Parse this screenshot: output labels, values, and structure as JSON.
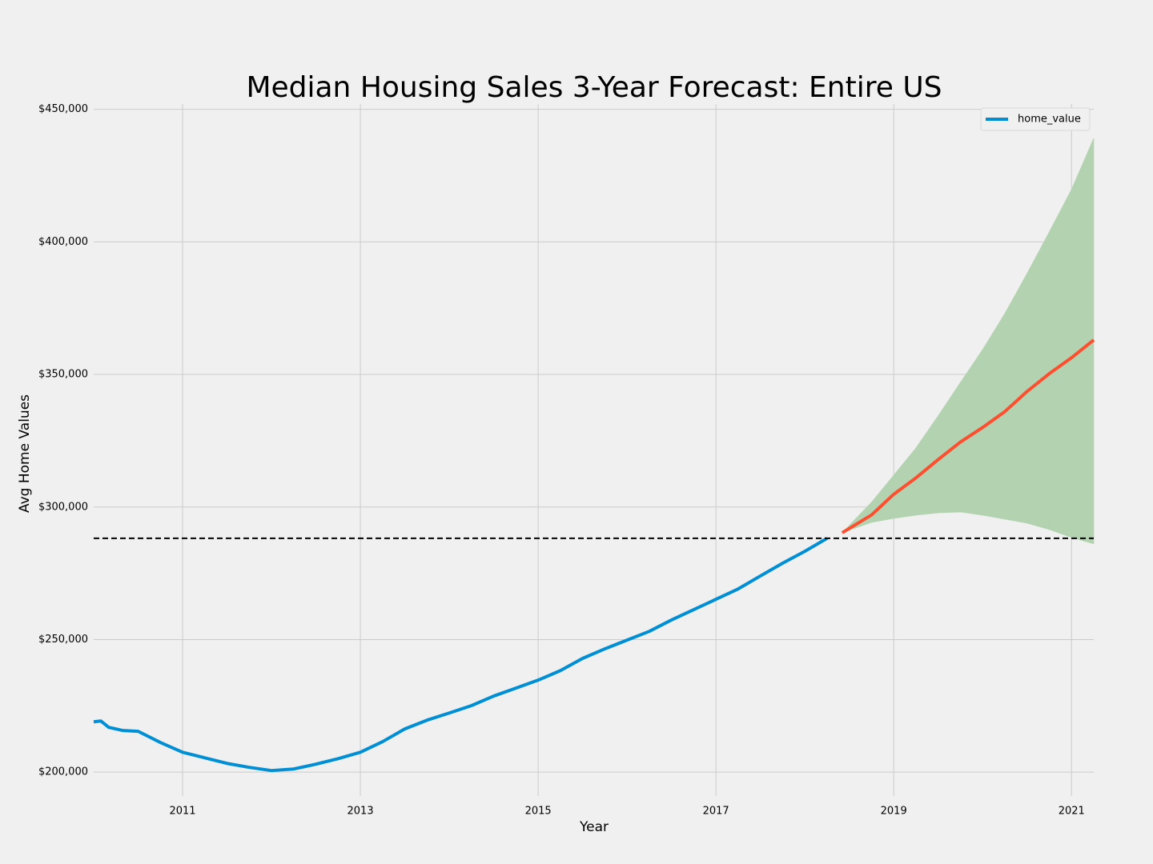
{
  "chart_data": {
    "type": "line",
    "title": "Median Housing Sales 3-Year Forecast: Entire US",
    "x_label": "Year",
    "y_label": "Avg Home Values",
    "xlim": [
      2010,
      2021.25
    ],
    "xticks": [
      2011,
      2013,
      2015,
      2017,
      2019,
      2021
    ],
    "ylim": [
      191000,
      452000
    ],
    "yticks": [
      {
        "value": 200000,
        "label": "$200,000"
      },
      {
        "value": 250000,
        "label": "$250,000"
      },
      {
        "value": 300000,
        "label": "$300,000"
      },
      {
        "value": 350000,
        "label": "$350,000"
      },
      {
        "value": 400000,
        "label": "$400,000"
      },
      {
        "value": 450000,
        "label": "$450,000"
      }
    ],
    "grid": true,
    "legend": "upper right",
    "series": [
      {
        "name": "home_value",
        "color": "#008fd5",
        "x": [
          2010.0,
          2010.08,
          2010.17,
          2010.33,
          2010.5,
          2010.75,
          2011.0,
          2011.25,
          2011.5,
          2011.75,
          2012.0,
          2012.25,
          2012.5,
          2012.75,
          2013.0,
          2013.25,
          2013.5,
          2013.75,
          2014.0,
          2014.25,
          2014.5,
          2014.75,
          2015.0,
          2015.25,
          2015.5,
          2015.75,
          2016.0,
          2016.25,
          2016.5,
          2016.75,
          2017.0,
          2017.25,
          2017.5,
          2017.75,
          2018.0,
          2018.25
        ],
        "values": [
          219000,
          219300,
          216900,
          215700,
          215400,
          211200,
          207500,
          205400,
          203300,
          201800,
          200600,
          201200,
          203000,
          205100,
          207500,
          211500,
          216300,
          219600,
          222300,
          225100,
          228700,
          231700,
          234700,
          238300,
          242900,
          246500,
          249800,
          253100,
          257400,
          261300,
          265200,
          269100,
          274000,
          278800,
          283300,
          288200
        ]
      },
      {
        "color": "#fc4f30",
        "x": [
          2018.42,
          2018.75,
          2019.0,
          2019.25,
          2019.5,
          2019.75,
          2020.0,
          2020.25,
          2020.5,
          2020.75,
          2021.0,
          2021.25
        ],
        "values": [
          290300,
          297000,
          304800,
          311000,
          317900,
          324500,
          330000,
          336000,
          343600,
          350300,
          356300,
          363000
        ]
      }
    ],
    "confidence_band": {
      "color": "#b3d3b0",
      "x": [
        2018.42,
        2018.75,
        2019.0,
        2019.25,
        2019.5,
        2019.75,
        2020.0,
        2020.25,
        2020.5,
        2020.75,
        2021.0,
        2021.25
      ],
      "lower": [
        290300,
        294200,
        295700,
        296900,
        297800,
        298100,
        296900,
        295400,
        293900,
        291500,
        288500,
        286100
      ],
      "upper": [
        290300,
        301800,
        312000,
        322300,
        334400,
        347000,
        359400,
        373000,
        388100,
        403800,
        419800,
        439100
      ]
    },
    "hline": {
      "value": 288200,
      "color": "#000000",
      "style": "dashed"
    }
  }
}
